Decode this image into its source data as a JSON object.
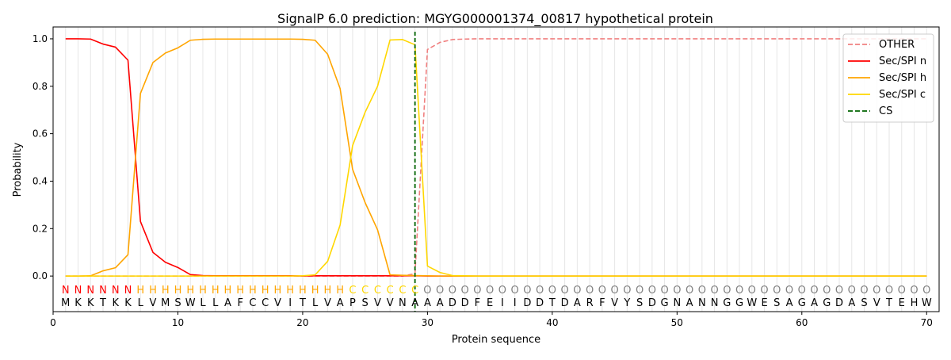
{
  "chart_data": {
    "type": "line",
    "title": "SignalP 6.0 prediction: MGYG000001374_00817 hypothetical protein",
    "xlabel": "Protein sequence",
    "ylabel": "Probability",
    "xlim": [
      0,
      71
    ],
    "ylim": [
      -0.15,
      1.05
    ],
    "x_ticks": [
      0,
      10,
      20,
      30,
      40,
      50,
      60,
      70
    ],
    "y_ticks": [
      0.0,
      0.2,
      0.4,
      0.6,
      0.8,
      1.0
    ],
    "x_tick_labels": [
      "0",
      "10",
      "20",
      "30",
      "40",
      "50",
      "60",
      "70"
    ],
    "y_tick_labels": [
      "0.0",
      "0.2",
      "0.4",
      "0.6",
      "0.8",
      "1.0"
    ],
    "grid": "vertical lines at each residue",
    "legend_position": "top-right",
    "sequence": [
      "M",
      "K",
      "K",
      "T",
      "K",
      "K",
      "L",
      "V",
      "M",
      "S",
      "W",
      "L",
      "L",
      "A",
      "F",
      "C",
      "C",
      "V",
      "I",
      "T",
      "L",
      "V",
      "A",
      "P",
      "S",
      "V",
      "V",
      "N",
      "A",
      "A",
      "A",
      "D",
      "D",
      "F",
      "E",
      "I",
      "I",
      "D",
      "D",
      "T",
      "D",
      "A",
      "R",
      "F",
      "V",
      "Y",
      "S",
      "D",
      "G",
      "N",
      "A",
      "N",
      "N",
      "G",
      "G",
      "W",
      "E",
      "S",
      "A",
      "G",
      "A",
      "G",
      "D",
      "A",
      "S",
      "V",
      "T",
      "E",
      "H",
      "W"
    ],
    "region_labels": [
      "N",
      "N",
      "N",
      "N",
      "N",
      "N",
      "H",
      "H",
      "H",
      "H",
      "H",
      "H",
      "H",
      "H",
      "H",
      "H",
      "H",
      "H",
      "H",
      "H",
      "H",
      "H",
      "H",
      "C",
      "C",
      "C",
      "C",
      "C",
      "C",
      "O",
      "O",
      "O",
      "O",
      "O",
      "O",
      "O",
      "O",
      "O",
      "O",
      "O",
      "O",
      "O",
      "O",
      "O",
      "O",
      "O",
      "O",
      "O",
      "O",
      "O",
      "O",
      "O",
      "O",
      "O",
      "O",
      "O",
      "O",
      "O",
      "O",
      "O",
      "O",
      "O",
      "O",
      "O",
      "O",
      "O",
      "O",
      "O",
      "O",
      "O"
    ],
    "region_colors": {
      "N": "#ff0000",
      "H": "#ffa500",
      "C": "#ffd700",
      "O": "#808080"
    },
    "cleavage_site": 29,
    "series": [
      {
        "name": "OTHER",
        "color": "#f08080",
        "dash": "dashed",
        "values": [
          0.0,
          0.0,
          0.0,
          0.0,
          0.0,
          0.0,
          0.0,
          0.0,
          0.0,
          0.0,
          0.0,
          0.0,
          0.0,
          0.0,
          0.0,
          0.0,
          0.0,
          0.0,
          0.0,
          0.0,
          0.0,
          0.0,
          0.0,
          0.0,
          0.0,
          0.0,
          0.0,
          0.0,
          0.01,
          0.955,
          0.985,
          0.997,
          0.999,
          1.0,
          1.0,
          1.0,
          1.0,
          1.0,
          1.0,
          1.0,
          1.0,
          1.0,
          1.0,
          1.0,
          1.0,
          1.0,
          1.0,
          1.0,
          1.0,
          1.0,
          1.0,
          1.0,
          1.0,
          1.0,
          1.0,
          1.0,
          1.0,
          1.0,
          1.0,
          1.0,
          1.0,
          1.0,
          1.0,
          1.0,
          1.0,
          1.0,
          1.0,
          1.0,
          1.0,
          1.0
        ]
      },
      {
        "name": "Sec/SPI n",
        "color": "#ff0000",
        "dash": "solid",
        "values": [
          1.0,
          1.0,
          0.999,
          0.978,
          0.965,
          0.91,
          0.23,
          0.1,
          0.058,
          0.036,
          0.006,
          0.002,
          0.001,
          0.001,
          0.001,
          0.001,
          0.001,
          0.001,
          0.001,
          0.0,
          0.001,
          0.001,
          0.001,
          0.001,
          0.001,
          0.001,
          0.001,
          0.001,
          0.001,
          0.0,
          0.0,
          0.0,
          0.0,
          0.0,
          0.0,
          0.0,
          0.0,
          0.0,
          0.0,
          0.0,
          0.0,
          0.0,
          0.0,
          0.0,
          0.0,
          0.0,
          0.0,
          0.0,
          0.0,
          0.0,
          0.0,
          0.0,
          0.0,
          0.0,
          0.0,
          0.0,
          0.0,
          0.0,
          0.0,
          0.0,
          0.0,
          0.0,
          0.0,
          0.0,
          0.0,
          0.0,
          0.0,
          0.0,
          0.0,
          0.0
        ]
      },
      {
        "name": "Sec/SPI h",
        "color": "#ffa500",
        "dash": "solid",
        "values": [
          0.0,
          0.0,
          0.001,
          0.022,
          0.035,
          0.09,
          0.77,
          0.9,
          0.94,
          0.962,
          0.994,
          0.998,
          0.999,
          0.999,
          0.999,
          0.999,
          0.999,
          0.999,
          0.999,
          0.998,
          0.994,
          0.935,
          0.79,
          0.45,
          0.31,
          0.195,
          0.005,
          0.003,
          0.002,
          0.001,
          0.0,
          0.0,
          0.0,
          0.0,
          0.0,
          0.0,
          0.0,
          0.0,
          0.0,
          0.0,
          0.0,
          0.0,
          0.0,
          0.0,
          0.0,
          0.0,
          0.0,
          0.0,
          0.0,
          0.0,
          0.0,
          0.0,
          0.0,
          0.0,
          0.0,
          0.0,
          0.0,
          0.0,
          0.0,
          0.0,
          0.0,
          0.0,
          0.0,
          0.0,
          0.0,
          0.0,
          0.0,
          0.0,
          0.0,
          0.0
        ]
      },
      {
        "name": "Sec/SPI c",
        "color": "#ffd700",
        "dash": "solid",
        "values": [
          0.0,
          0.0,
          0.0,
          0.0,
          0.0,
          0.0,
          0.0,
          0.0,
          0.0,
          0.0,
          0.0,
          0.0,
          0.0,
          0.0,
          0.0,
          0.0,
          0.0,
          0.0,
          0.0,
          0.001,
          0.005,
          0.062,
          0.215,
          0.55,
          0.69,
          0.8,
          0.995,
          0.997,
          0.975,
          0.042,
          0.015,
          0.002,
          0.001,
          0.0,
          0.0,
          0.0,
          0.0,
          0.0,
          0.0,
          0.0,
          0.0,
          0.0,
          0.0,
          0.0,
          0.0,
          0.0,
          0.0,
          0.0,
          0.0,
          0.0,
          0.0,
          0.0,
          0.0,
          0.0,
          0.0,
          0.0,
          0.0,
          0.0,
          0.0,
          0.0,
          0.0,
          0.0,
          0.0,
          0.0,
          0.0,
          0.0,
          0.0,
          0.0,
          0.0,
          0.0
        ]
      }
    ],
    "legend": [
      {
        "label": "OTHER",
        "color": "#f08080",
        "dash": "dashed"
      },
      {
        "label": "Sec/SPI n",
        "color": "#ff0000",
        "dash": "solid"
      },
      {
        "label": "Sec/SPI h",
        "color": "#ffa500",
        "dash": "solid"
      },
      {
        "label": "Sec/SPI c",
        "color": "#ffd700",
        "dash": "solid"
      },
      {
        "label": "CS",
        "color": "#006400",
        "dash": "dashed"
      }
    ]
  }
}
